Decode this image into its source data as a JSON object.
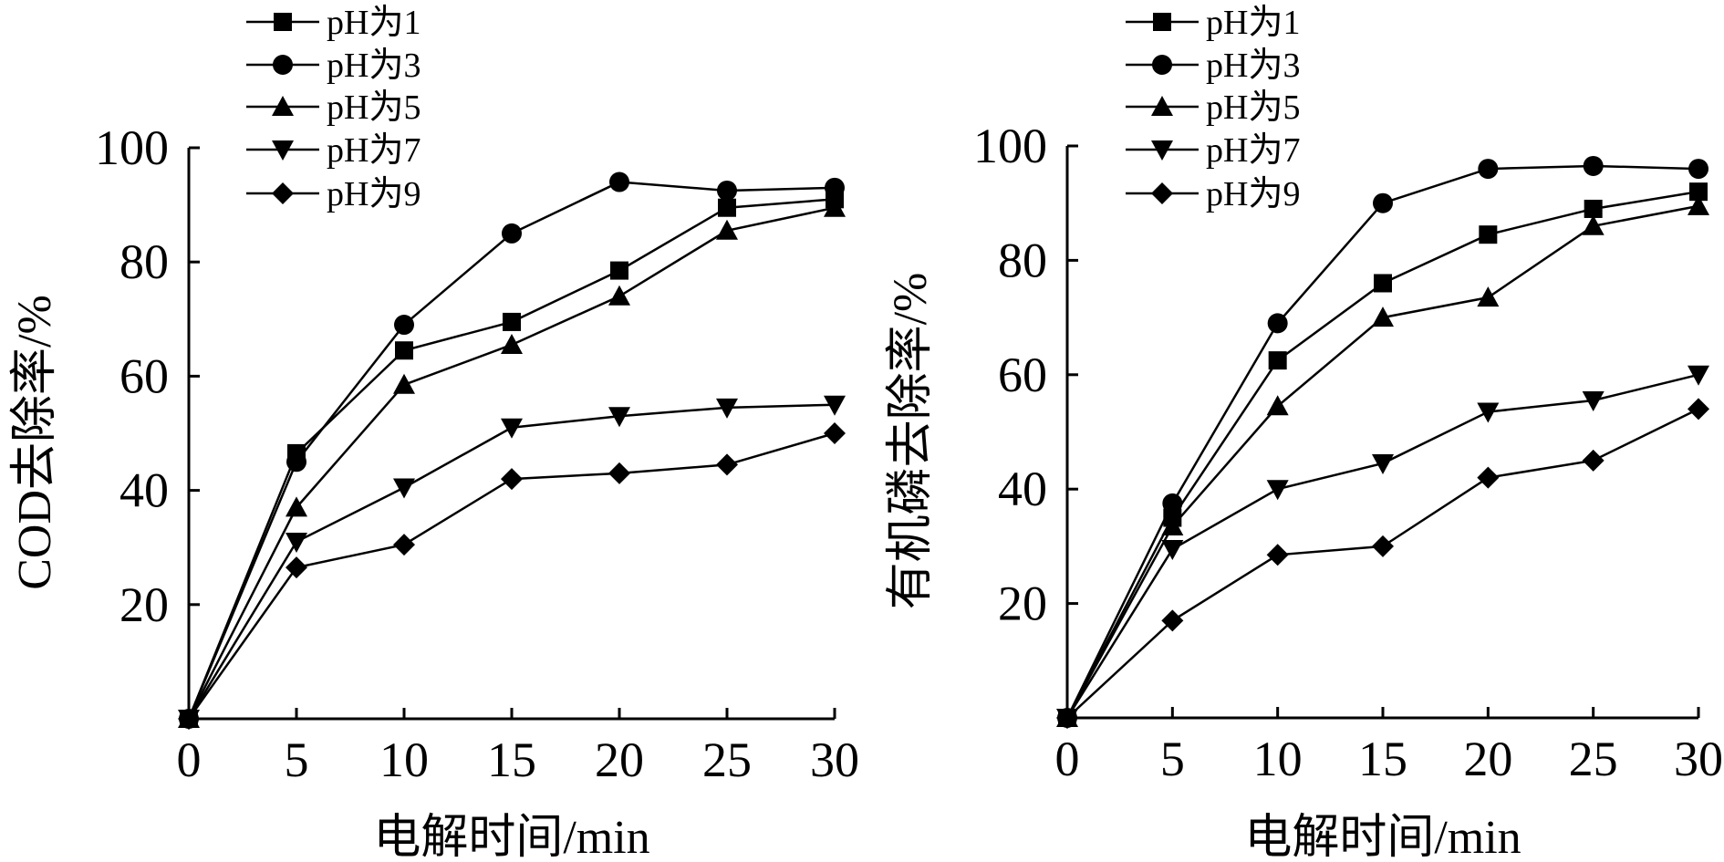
{
  "chart_data": [
    {
      "type": "line",
      "title": "",
      "xlabel": "电解时间/min",
      "ylabel": "COD去除率/%",
      "x": [
        0,
        5,
        10,
        15,
        20,
        25,
        30
      ],
      "xlim": [
        0,
        30
      ],
      "ylim": [
        0,
        100
      ],
      "xticks": [
        "0",
        "5",
        "10",
        "15",
        "20",
        "25",
        "30"
      ],
      "yticks": [
        "20",
        "40",
        "60",
        "80",
        "100"
      ],
      "grid": false,
      "legend_position": "top-left",
      "series": [
        {
          "name": "pH为1",
          "marker": "square",
          "values": [
            0,
            46.5,
            64.5,
            69.5,
            78.5,
            89.5,
            91
          ]
        },
        {
          "name": "pH为3",
          "marker": "circle",
          "values": [
            0,
            45,
            69,
            85,
            94,
            92.5,
            93
          ]
        },
        {
          "name": "pH为5",
          "marker": "triangle-up",
          "values": [
            0,
            37,
            58.5,
            65.5,
            74,
            85.5,
            89.5
          ]
        },
        {
          "name": "pH为7",
          "marker": "triangle-down",
          "values": [
            0,
            31,
            40.5,
            51,
            53,
            54.5,
            55
          ]
        },
        {
          "name": "pH为9",
          "marker": "diamond",
          "values": [
            0,
            26.5,
            30.5,
            42,
            43,
            44.5,
            50
          ]
        }
      ]
    },
    {
      "type": "line",
      "title": "",
      "xlabel": "电解时间/min",
      "ylabel": "有机磷去除率/%",
      "x": [
        0,
        5,
        10,
        15,
        20,
        25,
        30
      ],
      "xlim": [
        0,
        30
      ],
      "ylim": [
        0,
        100
      ],
      "xticks": [
        "0",
        "5",
        "10",
        "15",
        "20",
        "25",
        "30"
      ],
      "yticks": [
        "20",
        "40",
        "60",
        "80",
        "100"
      ],
      "grid": false,
      "legend_position": "top-left",
      "series": [
        {
          "name": "pH为1",
          "marker": "square",
          "values": [
            0,
            35,
            62.5,
            76,
            84.5,
            89,
            92
          ]
        },
        {
          "name": "pH为3",
          "marker": "circle",
          "values": [
            0,
            37.5,
            69,
            90,
            96,
            96.5,
            96
          ]
        },
        {
          "name": "pH为5",
          "marker": "triangle-up",
          "values": [
            0,
            33.5,
            54.5,
            70,
            73.5,
            86,
            89.5
          ]
        },
        {
          "name": "pH为7",
          "marker": "triangle-down",
          "values": [
            0,
            29.5,
            40,
            44.5,
            53.5,
            55.5,
            60
          ]
        },
        {
          "name": "pH为9",
          "marker": "diamond",
          "values": [
            0,
            17,
            28.5,
            30,
            42,
            45,
            54
          ]
        }
      ]
    }
  ]
}
